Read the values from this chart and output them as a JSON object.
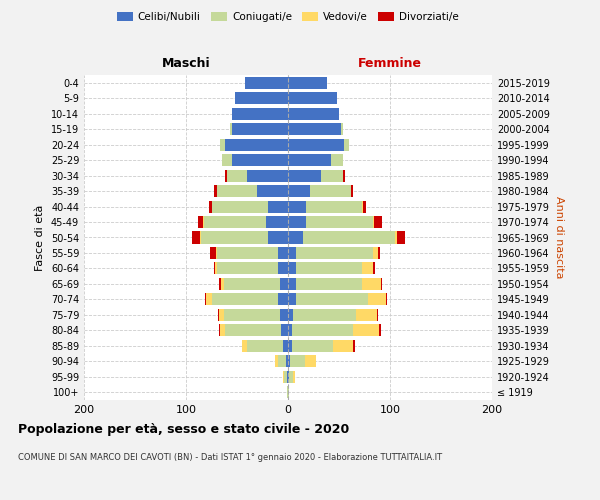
{
  "age_groups": [
    "100+",
    "95-99",
    "90-94",
    "85-89",
    "80-84",
    "75-79",
    "70-74",
    "65-69",
    "60-64",
    "55-59",
    "50-54",
    "45-49",
    "40-44",
    "35-39",
    "30-34",
    "25-29",
    "20-24",
    "15-19",
    "10-14",
    "5-9",
    "0-4"
  ],
  "birth_years": [
    "≤ 1919",
    "1920-1924",
    "1925-1929",
    "1930-1934",
    "1935-1939",
    "1940-1944",
    "1945-1949",
    "1950-1954",
    "1955-1959",
    "1960-1964",
    "1965-1969",
    "1970-1974",
    "1975-1979",
    "1980-1984",
    "1985-1989",
    "1990-1994",
    "1995-1999",
    "2000-2004",
    "2005-2009",
    "2010-2014",
    "2015-2019"
  ],
  "males": {
    "celibi": [
      0,
      1,
      2,
      5,
      7,
      8,
      10,
      8,
      10,
      10,
      20,
      22,
      20,
      30,
      40,
      55,
      62,
      55,
      55,
      52,
      42
    ],
    "coniugati": [
      1,
      3,
      8,
      35,
      55,
      55,
      65,
      55,
      60,
      60,
      65,
      60,
      55,
      40,
      20,
      10,
      5,
      2,
      0,
      0,
      0
    ],
    "vedovi": [
      0,
      1,
      3,
      5,
      5,
      5,
      5,
      3,
      2,
      1,
      1,
      1,
      0,
      0,
      0,
      0,
      0,
      0,
      0,
      0,
      0
    ],
    "divorziati": [
      0,
      0,
      0,
      0,
      1,
      1,
      1,
      2,
      1,
      5,
      8,
      5,
      2,
      3,
      2,
      0,
      0,
      0,
      0,
      0,
      0
    ]
  },
  "females": {
    "nubili": [
      0,
      1,
      2,
      4,
      4,
      5,
      8,
      8,
      8,
      8,
      15,
      18,
      18,
      22,
      32,
      42,
      55,
      52,
      50,
      48,
      38
    ],
    "coniugate": [
      1,
      4,
      15,
      40,
      60,
      62,
      70,
      65,
      65,
      75,
      90,
      65,
      55,
      40,
      22,
      12,
      5,
      2,
      0,
      0,
      0
    ],
    "vedove": [
      0,
      2,
      10,
      20,
      25,
      20,
      18,
      18,
      10,
      5,
      2,
      1,
      1,
      0,
      0,
      0,
      0,
      0,
      0,
      0,
      0
    ],
    "divorziate": [
      0,
      0,
      0,
      2,
      2,
      1,
      1,
      1,
      2,
      2,
      8,
      8,
      2,
      2,
      2,
      0,
      0,
      0,
      0,
      0,
      0
    ]
  },
  "colors": {
    "celibi_nubili": "#4472C4",
    "coniugati": "#C5D99A",
    "vedovi": "#FFD966",
    "divorziati": "#CC0000"
  },
  "xlim": [
    -200,
    200
  ],
  "xticks": [
    -200,
    -100,
    0,
    100,
    200
  ],
  "xticklabels": [
    "200",
    "100",
    "0",
    "100",
    "200"
  ],
  "title": "Popolazione per età, sesso e stato civile - 2020",
  "subtitle": "COMUNE DI SAN MARCO DEI CAVOTI (BN) - Dati ISTAT 1° gennaio 2020 - Elaborazione TUTTAITALIA.IT",
  "ylabel_left": "Fasce di età",
  "ylabel_right": "Anni di nascita",
  "header_maschi": "Maschi",
  "header_femmine": "Femmine",
  "bg_color": "#f2f2f2",
  "plot_bg": "#ffffff"
}
